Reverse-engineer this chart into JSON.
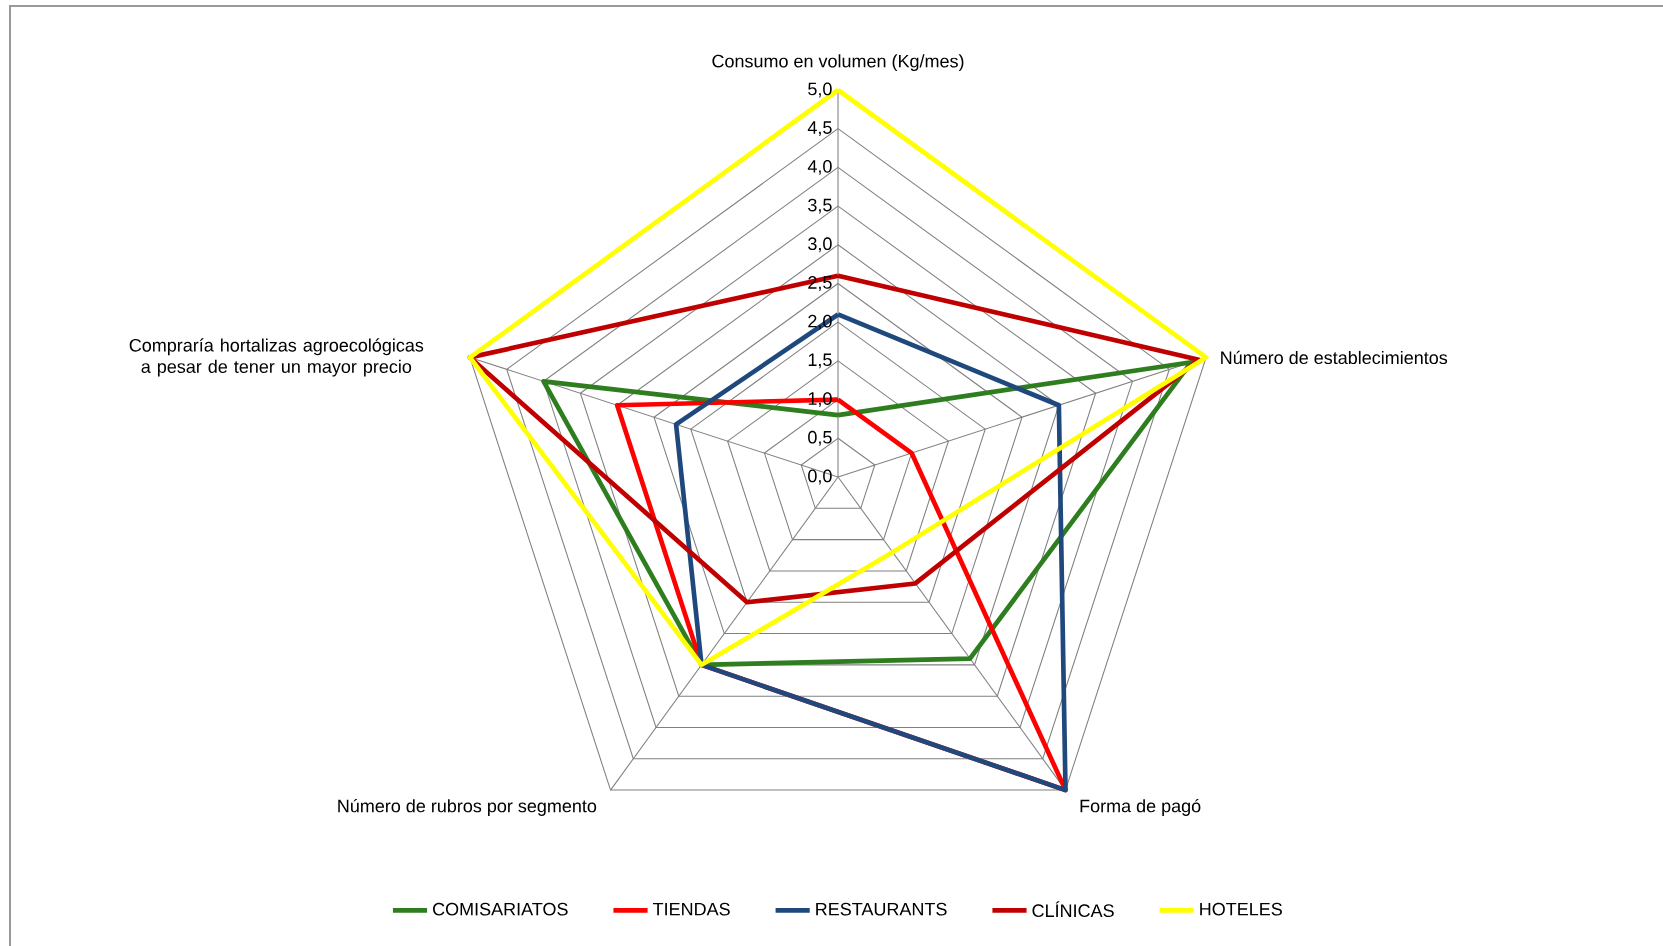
{
  "chart_data": {
    "type": "radar",
    "categories": [
      "Consumo en volumen (Kg/mes)",
      "Número de establecimientos",
      "Forma de pagó",
      "Número de rubros por segmento",
      "Compraría hortalizas agroecológicas a pesar de tener un mayor precio"
    ],
    "series": [
      {
        "name": "COMISARIATOS",
        "color": "#2e7d1e",
        "values": [
          0.8,
          4.8,
          2.9,
          3.0,
          4.0
        ]
      },
      {
        "name": "TIENDAS",
        "color": "#ff0000",
        "values": [
          1.0,
          1.0,
          5.0,
          3.0,
          3.0
        ]
      },
      {
        "name": "RESTAURANTS",
        "color": "#1f497d",
        "values": [
          2.1,
          3.0,
          5.0,
          3.0,
          2.2
        ]
      },
      {
        "name": "CLÍNICAS",
        "color": "#c00000",
        "values": [
          2.6,
          4.9,
          1.7,
          2.0,
          5.0
        ]
      },
      {
        "name": "HOTELES",
        "color": "#ffff00",
        "values": [
          5.0,
          5.0,
          1.2,
          3.0,
          5.0
        ]
      }
    ],
    "ylim": [
      0,
      5
    ],
    "yticks": [
      {
        "value": 0,
        "label": "0,0"
      },
      {
        "value": 0.5,
        "label": "0,5"
      },
      {
        "value": 1,
        "label": "1,0"
      },
      {
        "value": 1.5,
        "label": "1,5"
      },
      {
        "value": 2,
        "label": "2,0"
      },
      {
        "value": 2.5,
        "label": "2,5"
      },
      {
        "value": 3,
        "label": "3,0"
      },
      {
        "value": 3.5,
        "label": "3,5"
      },
      {
        "value": 4,
        "label": "4,0"
      },
      {
        "value": 4.5,
        "label": "4,5"
      },
      {
        "value": 5,
        "label": "5,0"
      }
    ],
    "grid": true,
    "legend": "bottom"
  }
}
